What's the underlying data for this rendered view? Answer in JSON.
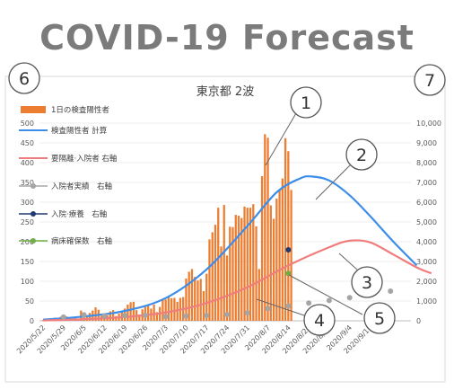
{
  "heading": "COVID-19 Forecast",
  "chart_data": {
    "type": "bar+line",
    "title": "東京都 2波",
    "x_labels": [
      "2020/5/22",
      "2020/5/29",
      "2020/6/5",
      "2020/6/12",
      "2020/6/19",
      "2020/6/26",
      "2020/7/3",
      "2020/7/10",
      "2020/7/17",
      "2020/7/24",
      "2020/7/31",
      "2020/8/7",
      "2020/8/14",
      "2020/8/21",
      "2020/8/28",
      "2020/9/4",
      "2020/9/11"
    ],
    "y_left": {
      "range": [
        0,
        500
      ],
      "ticks": [
        "0",
        "50",
        "100",
        "150",
        "200",
        "250",
        "300",
        "350",
        "400",
        "450",
        "500"
      ]
    },
    "y_right": {
      "range": [
        0,
        10000
      ],
      "ticks": [
        "0",
        "1,000",
        "2,000",
        "3,000",
        "4,000",
        "5,000",
        "6,000",
        "7,000",
        "8,000",
        "9,000",
        "10,000"
      ]
    },
    "legend": [
      "1日の検査陽性者",
      "検査陽性者 計算",
      "要隔離·入院者 右軸",
      "入院者実績　右軸",
      "入院·療養　右軸",
      "病床確保数　右軸"
    ],
    "series": [
      {
        "name": "1日の検査陽性者",
        "kind": "bar",
        "axis": "left",
        "color": "#ed7d31",
        "start_day": 0,
        "values": [
          2,
          5,
          3,
          5,
          8,
          3,
          10,
          14,
          11,
          8,
          5,
          8,
          5,
          26,
          21,
          12,
          20,
          26,
          34,
          28,
          13,
          14,
          14,
          24,
          27,
          12,
          18,
          25,
          31,
          41,
          47,
          48,
          27,
          16,
          29,
          35,
          39,
          31,
          41,
          22,
          35,
          55,
          54,
          60,
          57,
          58,
          48,
          58,
          60,
          107,
          124,
          131,
          111,
          102,
          106,
          75,
          119,
          206,
          224,
          243,
          286,
          188,
          293,
          165,
          238,
          237,
          268,
          266,
          260,
          289,
          286,
          286,
          295,
          239,
          131,
          366,
          472,
          463,
          292,
          258,
          309,
          331,
          360,
          462,
          429,
          331
        ]
      },
      {
        "name": "検査陽性者 計算",
        "kind": "line",
        "axis": "right",
        "color": "#3d8ee8",
        "points": [
          [
            0,
            60
          ],
          [
            14,
            220
          ],
          [
            28,
            500
          ],
          [
            42,
            1150
          ],
          [
            56,
            2600
          ],
          [
            70,
            4800
          ],
          [
            80,
            6500
          ],
          [
            88,
            7200
          ],
          [
            92,
            7300
          ],
          [
            98,
            7100
          ],
          [
            105,
            6350
          ],
          [
            112,
            5300
          ],
          [
            120,
            4000
          ],
          [
            128,
            2800
          ]
        ]
      },
      {
        "name": "要隔離·入院者 右軸",
        "kind": "line",
        "axis": "right",
        "color": "#f07d7d",
        "points": [
          [
            0,
            20
          ],
          [
            14,
            80
          ],
          [
            28,
            190
          ],
          [
            42,
            420
          ],
          [
            56,
            900
          ],
          [
            70,
            1700
          ],
          [
            84,
            2800
          ],
          [
            98,
            3720
          ],
          [
            105,
            4050
          ],
          [
            112,
            3970
          ],
          [
            120,
            3350
          ],
          [
            128,
            2700
          ],
          [
            133,
            2400
          ]
        ]
      },
      {
        "name": "入院者実績　右軸",
        "kind": "points",
        "axis": "right",
        "color": "#a5a5a5",
        "points": [
          [
            7,
            190
          ],
          [
            14,
            300
          ],
          [
            21,
            250
          ],
          [
            28,
            260
          ],
          [
            35,
            280
          ],
          [
            42,
            210
          ],
          [
            49,
            240
          ],
          [
            56,
            270
          ],
          [
            63,
            320
          ],
          [
            70,
            400
          ],
          [
            77,
            620
          ],
          [
            84,
            750
          ],
          [
            91,
            900
          ],
          [
            98,
            1030
          ],
          [
            105,
            1170
          ],
          [
            112,
            1440
          ],
          [
            119,
            1500
          ]
        ]
      },
      {
        "name": "入院·療養　右軸",
        "kind": "points",
        "axis": "right",
        "color": "#1f3b73",
        "points": [
          [
            84,
            3590
          ]
        ]
      },
      {
        "name": "病床確保数　右軸",
        "kind": "points",
        "axis": "right",
        "color": "#70ad47",
        "points": [
          [
            84,
            2400
          ]
        ]
      }
    ],
    "callouts": [
      "1",
      "2",
      "3",
      "4",
      "5",
      "6",
      "7"
    ]
  }
}
